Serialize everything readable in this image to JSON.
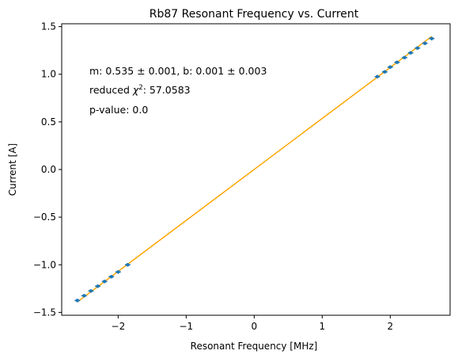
{
  "chart_data": {
    "type": "scatter",
    "title": "Rb87 Resonant Frequency vs. Current",
    "xlabel": "Resonant Frequency [MHz]",
    "ylabel": "Current [A]",
    "xlim": [
      -2.83,
      2.88
    ],
    "ylim": [
      -1.53,
      1.53
    ],
    "xticks": [
      -2,
      -1,
      0,
      1,
      2
    ],
    "xtick_labels": [
      "−2",
      "−1",
      "0",
      "1",
      "2"
    ],
    "yticks": [
      -1.5,
      -1.0,
      -0.5,
      0.0,
      0.5,
      1.0,
      1.5
    ],
    "ytick_labels": [
      "−1.5",
      "−1.0",
      "−0.5",
      "0.0",
      "0.5",
      "1.0",
      "1.5"
    ],
    "grid": false,
    "series": [
      {
        "kind": "errorbar-points",
        "color": "#1f77b4",
        "x": [
          -2.6,
          -2.5,
          -2.4,
          -2.3,
          -2.2,
          -2.1,
          -2.0,
          -1.86,
          1.81,
          1.92,
          2.0,
          2.1,
          2.21,
          2.3,
          2.4,
          2.51,
          2.61
        ],
        "y": [
          -1.375,
          -1.325,
          -1.275,
          -1.225,
          -1.175,
          -1.125,
          -1.075,
          -1.0,
          0.975,
          1.025,
          1.075,
          1.125,
          1.175,
          1.225,
          1.275,
          1.325,
          1.375
        ],
        "xerr": 0.04
      },
      {
        "kind": "fit-line",
        "color": "#ffa500",
        "slope": 0.535,
        "intercept": 0.001,
        "x_range": [
          -2.6,
          2.61
        ]
      }
    ],
    "annotations": [
      {
        "text": "m: 0.535 ± 0.001, b: 0.001 ± 0.003"
      },
      {
        "text_prefix": "reduced ",
        "text_symbol": "χ",
        "text_sup": "2",
        "text_suffix": ": 57.0583"
      },
      {
        "text": "p-value: 0.0"
      }
    ]
  }
}
